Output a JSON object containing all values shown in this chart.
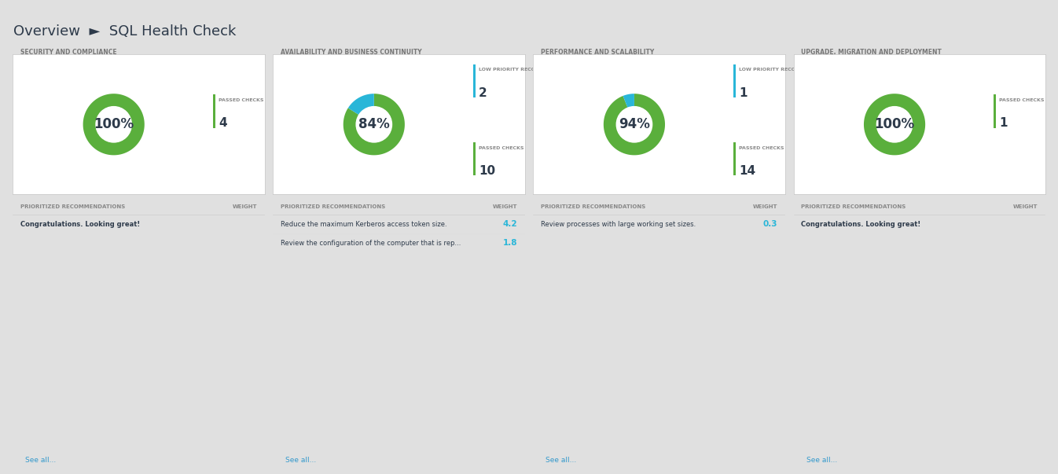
{
  "title": "SQL Health Check",
  "breadcrumb": "Overview  ►  SQL Health Check",
  "bg_color": "#e0e0e0",
  "panel_bg": "#e8e8e8",
  "card_bg": "#ffffff",
  "header_text_color": "#555555",
  "title_color": "#333333",
  "green_color": "#5aaf3c",
  "blue_color": "#29b6d8",
  "dark_text": "#2d3a4a",
  "link_color": "#3399cc",
  "panels": [
    {
      "title": "SECURITY AND COMPLIANCE",
      "percent": 100,
      "percent_label": "100%",
      "donut_green": 100,
      "donut_blue": 0,
      "legend": [
        {
          "color": "#5aaf3c",
          "label": "PASSED CHECKS",
          "value": "4"
        }
      ],
      "recommendations": [
        {
          "text": "Congratulations. Looking great!",
          "weight": null,
          "bold": true
        }
      ]
    },
    {
      "title": "AVAILABILITY AND BUSINESS CONTINUITY",
      "percent": 84,
      "percent_label": "84%",
      "donut_green": 84,
      "donut_blue": 16,
      "legend": [
        {
          "color": "#29b6d8",
          "label": "LOW PRIORITY RECOMMENDATIO...",
          "value": "2"
        },
        {
          "color": "#5aaf3c",
          "label": "PASSED CHECKS",
          "value": "10"
        }
      ],
      "recommendations": [
        {
          "text": "Reduce the maximum Kerberos access token size.",
          "weight": "4.2",
          "bold": false
        },
        {
          "text": "Review the configuration of the computer that is rep...",
          "weight": "1.8",
          "bold": false
        }
      ]
    },
    {
      "title": "PERFORMANCE AND SCALABILITY",
      "percent": 94,
      "percent_label": "94%",
      "donut_green": 94,
      "donut_blue": 6,
      "legend": [
        {
          "color": "#29b6d8",
          "label": "LOW PRIORITY RECOMMENDATIO...",
          "value": "1"
        },
        {
          "color": "#5aaf3c",
          "label": "PASSED CHECKS",
          "value": "14"
        }
      ],
      "recommendations": [
        {
          "text": "Review processes with large working set sizes.",
          "weight": "0.3",
          "bold": false
        }
      ]
    },
    {
      "title": "UPGRADE, MIGRATION AND DEPLOYMENT",
      "percent": 100,
      "percent_label": "100%",
      "donut_green": 100,
      "donut_blue": 0,
      "legend": [
        {
          "color": "#5aaf3c",
          "label": "PASSED CHECKS",
          "value": "1"
        }
      ],
      "recommendations": [
        {
          "text": "Congratulations. Looking great!",
          "weight": null,
          "bold": true
        }
      ]
    }
  ]
}
